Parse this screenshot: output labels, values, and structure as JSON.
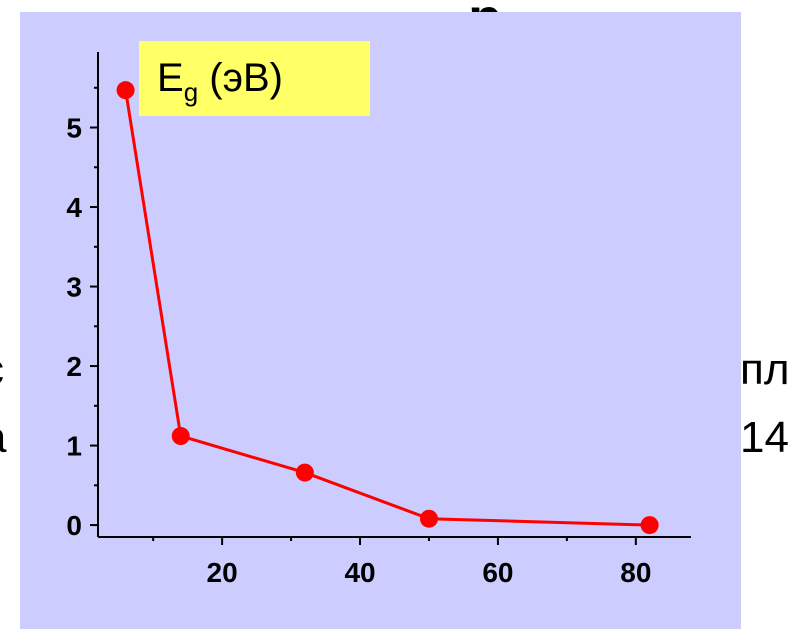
{
  "background_text": {
    "top": "р",
    "right_line1": "пл",
    "right_line2": "14",
    "left_line1": "с",
    "left_line2": "а"
  },
  "colors": {
    "panel": "#ccccff",
    "legend_box": "#ffff66",
    "series": "#ff0000",
    "axis": "#000000"
  },
  "chart_data": {
    "type": "line",
    "title": "",
    "xlabel": "",
    "ylabel": "",
    "legend": {
      "main": "E",
      "sub": "g",
      "rest": " (эВ)",
      "placement": "top-left"
    },
    "xlim": [
      2,
      88
    ],
    "ylim": [
      -0.15,
      5.95
    ],
    "x_ticks": [
      20,
      40,
      60,
      80
    ],
    "y_ticks": [
      0,
      1,
      2,
      3,
      4,
      5
    ],
    "grid": false,
    "series": [
      {
        "x": [
          6,
          14,
          32,
          50,
          82
        ],
        "y": [
          5.47,
          1.12,
          0.66,
          0.08,
          0.0
        ]
      }
    ]
  }
}
